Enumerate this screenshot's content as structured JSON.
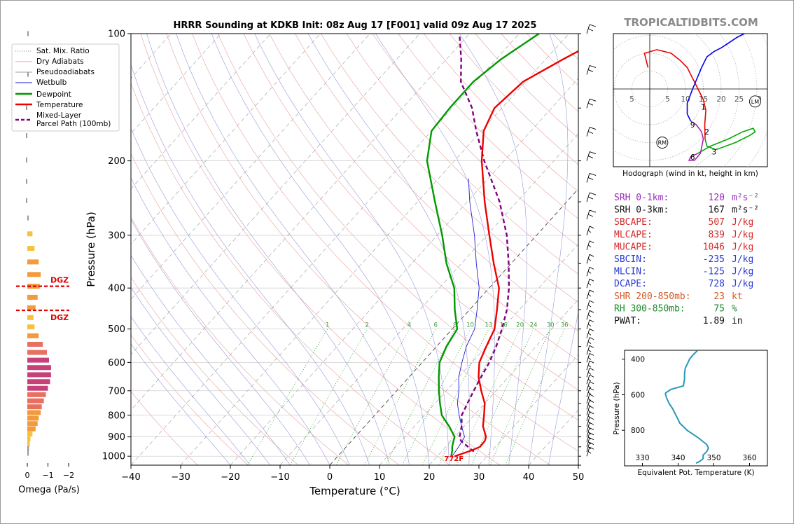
{
  "site": {
    "watermark": "TROPICALTIDBITS.COM"
  },
  "chart_data": [
    {
      "type": "line",
      "chart": "skew-t",
      "title": "HRRR Sounding at KDKB Init: 08z Aug 17 [F001] valid 09z Aug 17 2025",
      "xlabel": "Temperature (°C)",
      "ylabel": "Pressure (hPa)",
      "xlim": [
        -40,
        50
      ],
      "ylim": [
        1050,
        100
      ],
      "y_scale": "log",
      "x_ticks": [
        -40,
        -30,
        -20,
        -10,
        0,
        10,
        20,
        30,
        40,
        50
      ],
      "y_ticks": [
        100,
        200,
        300,
        400,
        500,
        600,
        700,
        800,
        900,
        1000
      ],
      "grid": true,
      "legend_position": "top-left",
      "legend": [
        "Sat. Mix. Ratio",
        "Dry Adiabats",
        "Pseudoadiabats",
        "Wetbulb",
        "Dewpoint",
        "Temperature",
        "Mixed-Layer\nParcel Path (100mb)"
      ],
      "mixing_ratio_labels": [
        "1",
        "2",
        "4",
        "6",
        "8",
        "10",
        "13",
        "16",
        "20",
        "24",
        "30",
        "36"
      ],
      "surface_temp_label": "772F",
      "colors": {
        "temperature": "#ee0000",
        "dewpoint": "#009900",
        "wetbulb": "#1f1fd0",
        "parcel": "#800080"
      },
      "series": [
        {
          "name": "Temperature",
          "points": [
            [
              1000,
              23.5
            ],
            [
              970,
              25.8
            ],
            [
              950,
              26.9
            ],
            [
              920,
              26.8
            ],
            [
              900,
              26.3
            ],
            [
              850,
              23.8
            ],
            [
              800,
              22.0
            ],
            [
              750,
              20.0
            ],
            [
              700,
              17.0
            ],
            [
              650,
              14.0
            ],
            [
              600,
              11.5
            ],
            [
              550,
              10.0
            ],
            [
              500,
              8.5
            ],
            [
              450,
              5.5
            ],
            [
              400,
              2.0
            ],
            [
              350,
              -3.5
            ],
            [
              300,
              -9.5
            ],
            [
              250,
              -16.5
            ],
            [
              200,
              -24.5
            ],
            [
              170,
              -29.5
            ],
            [
              150,
              -31.5
            ],
            [
              130,
              -30.5
            ],
            [
              115,
              -26.5
            ],
            [
              100,
              -21.5
            ]
          ]
        },
        {
          "name": "Dewpoint",
          "points": [
            [
              1000,
              22.8
            ],
            [
              970,
              22.0
            ],
            [
              950,
              21.3
            ],
            [
              920,
              20.5
            ],
            [
              900,
              20.0
            ],
            [
              850,
              17.0
            ],
            [
              800,
              13.5
            ],
            [
              750,
              11.0
            ],
            [
              700,
              8.5
            ],
            [
              650,
              6.0
            ],
            [
              600,
              3.5
            ],
            [
              550,
              2.0
            ],
            [
              500,
              1.0
            ],
            [
              450,
              -3.0
            ],
            [
              400,
              -7.0
            ],
            [
              350,
              -13.0
            ],
            [
              300,
              -19.0
            ],
            [
              250,
              -26.5
            ],
            [
              200,
              -35.5
            ],
            [
              170,
              -40.0
            ],
            [
              150,
              -40.5
            ],
            [
              130,
              -40.5
            ],
            [
              115,
              -39.0
            ],
            [
              100,
              -36.0
            ]
          ]
        },
        {
          "name": "Wetbulb",
          "points": [
            [
              1000,
              23.0
            ],
            [
              950,
              22.6
            ],
            [
              900,
              22.0
            ],
            [
              850,
              19.5
            ],
            [
              800,
              17.0
            ],
            [
              750,
              14.5
            ],
            [
              700,
              12.5
            ],
            [
              650,
              10.0
            ],
            [
              600,
              8.0
            ],
            [
              550,
              6.0
            ],
            [
              500,
              4.5
            ],
            [
              450,
              1.5
            ],
            [
              400,
              -2.0
            ],
            [
              350,
              -7.0
            ],
            [
              300,
              -12.5
            ],
            [
              250,
              -19.5
            ],
            [
              220,
              -24.0
            ]
          ]
        },
        {
          "name": "Mixed-Layer Parcel Path (100mb)",
          "points": [
            [
              975,
              26.5
            ],
            [
              950,
              24.5
            ],
            [
              920,
              22.0
            ],
            [
              900,
              21.0
            ],
            [
              850,
              19.5
            ],
            [
              800,
              17.5
            ],
            [
              750,
              16.5
            ],
            [
              700,
              15.5
            ],
            [
              650,
              14.5
            ],
            [
              600,
              13.5
            ],
            [
              550,
              12.0
            ],
            [
              500,
              10.0
            ],
            [
              450,
              7.5
            ],
            [
              400,
              4.0
            ],
            [
              350,
              -0.5
            ],
            [
              300,
              -6.0
            ],
            [
              250,
              -13.5
            ],
            [
              200,
              -24.0
            ],
            [
              170,
              -31.0
            ],
            [
              150,
              -36.0
            ],
            [
              130,
              -43.0
            ],
            [
              115,
              -47.0
            ],
            [
              100,
              -52.0
            ]
          ]
        }
      ]
    },
    {
      "type": "bar",
      "chart": "omega-profile",
      "xlabel": "Omega (Pa/s)",
      "x_ticks": [
        "0",
        "−1",
        "−2"
      ],
      "xlim": [
        0.5,
        -2.5
      ],
      "dgz_label": "DGZ",
      "dgz_pressures": [
        400,
        460
      ],
      "bars": [
        {
          "p": 100,
          "omega": -0.05
        },
        {
          "p": 125,
          "omega": 0.0
        },
        {
          "p": 150,
          "omega": 0.03
        },
        {
          "p": 175,
          "omega": 0.03
        },
        {
          "p": 200,
          "omega": 0.02
        },
        {
          "p": 225,
          "omega": 0.04
        },
        {
          "p": 250,
          "omega": 0.04
        },
        {
          "p": 275,
          "omega": -0.05
        },
        {
          "p": 300,
          "omega": -0.25
        },
        {
          "p": 325,
          "omega": -0.35
        },
        {
          "p": 350,
          "omega": -0.55
        },
        {
          "p": 375,
          "omega": -0.65
        },
        {
          "p": 400,
          "omega": -0.6
        },
        {
          "p": 425,
          "omega": -0.5
        },
        {
          "p": 450,
          "omega": -0.4
        },
        {
          "p": 475,
          "omega": -0.3
        },
        {
          "p": 500,
          "omega": -0.35
        },
        {
          "p": 525,
          "omega": -0.55
        },
        {
          "p": 550,
          "omega": -0.75
        },
        {
          "p": 575,
          "omega": -0.95
        },
        {
          "p": 600,
          "omega": -1.05
        },
        {
          "p": 625,
          "omega": -1.15
        },
        {
          "p": 650,
          "omega": -1.15
        },
        {
          "p": 675,
          "omega": -1.1
        },
        {
          "p": 700,
          "omega": -1.0
        },
        {
          "p": 725,
          "omega": -0.9
        },
        {
          "p": 750,
          "omega": -0.8
        },
        {
          "p": 775,
          "omega": -0.7
        },
        {
          "p": 800,
          "omega": -0.65
        },
        {
          "p": 825,
          "omega": -0.55
        },
        {
          "p": 850,
          "omega": -0.5
        },
        {
          "p": 875,
          "omega": -0.4
        },
        {
          "p": 900,
          "omega": -0.25
        },
        {
          "p": 925,
          "omega": -0.15
        },
        {
          "p": 950,
          "omega": -0.12
        },
        {
          "p": 975,
          "omega": -0.08
        },
        {
          "p": 1000,
          "omega": -0.03
        }
      ]
    },
    {
      "type": "line",
      "chart": "hodograph",
      "xlabel": "Hodograph (wind in kt, height in km)",
      "ring_labels": [
        "5",
        "5",
        "10",
        "15",
        "20",
        "25",
        "30"
      ],
      "height_labels": [
        "1",
        "2",
        "3",
        "6",
        "9"
      ],
      "markers": [
        "RM",
        "LM"
      ],
      "colors": [
        "#ee0000",
        "#0000ee",
        "#00aa00",
        "#aa22aa"
      ],
      "segments": [
        {
          "km": "0-1",
          "points": [
            [
              -0.5,
              6
            ],
            [
              -1.5,
              10
            ],
            [
              2.0,
              11
            ],
            [
              6.0,
              10
            ],
            [
              8.5,
              8
            ],
            [
              10.5,
              6
            ],
            [
              12.0,
              3
            ],
            [
              13.5,
              0
            ]
          ]
        },
        {
          "km": "1-3",
          "points": [
            [
              13.5,
              0
            ],
            [
              15.0,
              -3
            ],
            [
              15.7,
              -6
            ],
            [
              15.4,
              -10
            ],
            [
              15.5,
              -14
            ]
          ]
        },
        {
          "km": "3-6",
          "points": [
            [
              15.5,
              -14
            ],
            [
              16.0,
              -16
            ],
            [
              18.5,
              -17
            ],
            [
              24.0,
              -15
            ],
            [
              28.0,
              -13
            ],
            [
              29.5,
              -12
            ],
            [
              29.0,
              -11
            ],
            [
              26.0,
              -12
            ],
            [
              22.0,
              -14
            ],
            [
              17.0,
              -16
            ],
            [
              13.5,
              -18
            ]
          ]
        },
        {
          "km": "6-9",
          "points": [
            [
              13.5,
              -18
            ],
            [
              11.5,
              -19
            ],
            [
              11.0,
              -20
            ],
            [
              12.5,
              -20
            ],
            [
              14.2,
              -18
            ],
            [
              15.0,
              -14
            ],
            [
              14.5,
              -12
            ],
            [
              13.0,
              -10
            ],
            [
              11.5,
              -9
            ]
          ]
        },
        {
          "km": "9-12",
          "points": [
            [
              11.5,
              -9
            ],
            [
              10.5,
              -7
            ],
            [
              10.5,
              -4
            ],
            [
              12.0,
              0
            ],
            [
              14.5,
              6
            ],
            [
              16.0,
              9
            ],
            [
              18.0,
              10.5
            ],
            [
              20.0,
              11.5
            ],
            [
              21.5,
              12.5
            ],
            [
              23.0,
              13.5
            ],
            [
              24.5,
              14.5
            ],
            [
              26.5,
              15.5
            ]
          ]
        }
      ]
    },
    {
      "type": "line",
      "chart": "theta-e-profile",
      "xlabel": "Equivalent Pot. Temperature (K)",
      "ylabel": "Pressure (hPa)",
      "xlim": [
        325,
        365
      ],
      "ylim": [
        1000,
        350
      ],
      "x_ticks": [
        330,
        340,
        350,
        360
      ],
      "y_ticks": [
        400,
        600,
        800
      ],
      "color": "#2a98b8",
      "series": [
        {
          "name": "",
          "points": [
            [
              350,
              345.5
            ],
            [
              380,
              344.0
            ],
            [
              400,
              343.2
            ],
            [
              430,
              342.5
            ],
            [
              450,
              342.0
            ],
            [
              480,
              341.8
            ],
            [
              510,
              341.8
            ],
            [
              550,
              341.5
            ],
            [
              570,
              338.0
            ],
            [
              590,
              336.5
            ],
            [
              600,
              336.5
            ],
            [
              620,
              336.8
            ],
            [
              650,
              337.5
            ],
            [
              680,
              338.5
            ],
            [
              720,
              339.5
            ],
            [
              760,
              340.5
            ],
            [
              800,
              342.5
            ],
            [
              840,
              345.5
            ],
            [
              880,
              348.0
            ],
            [
              900,
              348.5
            ],
            [
              920,
              348.0
            ],
            [
              940,
              347.0
            ],
            [
              960,
              347.0
            ],
            [
              975,
              346.0
            ],
            [
              985,
              345.0
            ]
          ]
        }
      ]
    }
  ],
  "indices": {
    "srh1": {
      "label": "SRH 0-1km:",
      "value": "120",
      "unit": "m²s⁻²",
      "color": "#9a2bbf"
    },
    "srh3": {
      "label": "SRH 0-3km:",
      "value": "167",
      "unit": "m²s⁻²",
      "color": "#111111"
    },
    "sbcape": {
      "label": "SBCAPE:",
      "value": "507",
      "unit": "J/kg",
      "color": "#d42a2a"
    },
    "mlcape": {
      "label": "MLCAPE:",
      "value": "839",
      "unit": "J/kg",
      "color": "#d42a2a"
    },
    "mucape": {
      "label": "MUCAPE:",
      "value": "1046",
      "unit": "J/kg",
      "color": "#d42a2a"
    },
    "sbcin": {
      "label": "SBCIN:",
      "value": "-235",
      "unit": "J/kg",
      "color": "#2a3ad4"
    },
    "mlcin": {
      "label": "MLCIN:",
      "value": "-125",
      "unit": "J/kg",
      "color": "#2a3ad4"
    },
    "dcape": {
      "label": "DCAPE:",
      "value": "728",
      "unit": "J/kg",
      "color": "#2a3ad4"
    },
    "shr": {
      "label": "SHR 200-850mb:",
      "value": "23",
      "unit": "kt",
      "color": "#d45a2a"
    },
    "rh": {
      "label": "RH 300-850mb:",
      "value": "75",
      "unit": "%",
      "color": "#1a8a2a"
    },
    "pwat": {
      "label": "PWAT:",
      "value": "1.89",
      "unit": "in",
      "color": "#111111"
    }
  }
}
